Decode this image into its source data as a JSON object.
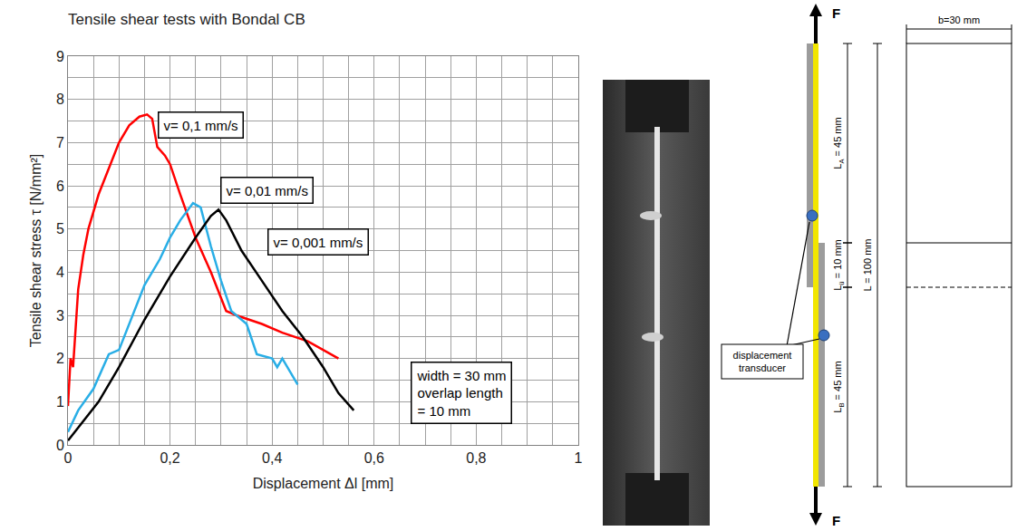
{
  "chart_data": {
    "type": "line",
    "title": "Tensile shear tests with Bondal CB",
    "x_label": "Displacement Δl [mm]",
    "y_label": "Tensile shear stress τ [N/mm²]",
    "xlim": [
      0,
      1
    ],
    "xticks": [
      0,
      {
        "value": 0.2,
        "label": "0,2"
      },
      {
        "value": 0.4,
        "label": "0,4"
      },
      {
        "value": 0.6,
        "label": "0,6"
      },
      {
        "value": 0.8,
        "label": "0,8"
      },
      1
    ],
    "ylim": [
      0,
      9
    ],
    "yticks": [
      0,
      1,
      2,
      3,
      4,
      5,
      6,
      7,
      8,
      9
    ],
    "grid": true,
    "series": [
      {
        "name": "v= 0,1 mm/s",
        "color": "#ff0000",
        "label_x": 0.26,
        "label_y": 7.4,
        "x": [
          0,
          0.005,
          0.01,
          0.015,
          0.02,
          0.03,
          0.04,
          0.06,
          0.08,
          0.1,
          0.12,
          0.14,
          0.155,
          0.165,
          0.175,
          0.19,
          0.2,
          0.22,
          0.25,
          0.28,
          0.31,
          0.33,
          0.38,
          0.42,
          0.47,
          0.5,
          0.53
        ],
        "values": [
          0.9,
          2.0,
          1.8,
          2.8,
          3.6,
          4.4,
          5.0,
          5.8,
          6.4,
          7.0,
          7.4,
          7.6,
          7.65,
          7.55,
          6.9,
          6.7,
          6.5,
          5.8,
          4.8,
          4.0,
          3.1,
          3.0,
          2.8,
          2.6,
          2.4,
          2.2,
          2.0
        ]
      },
      {
        "name": "v= 0,01 mm/s",
        "color": "#29aee6",
        "label_x": 0.39,
        "label_y": 5.9,
        "x": [
          0,
          0.02,
          0.05,
          0.08,
          0.1,
          0.12,
          0.15,
          0.18,
          0.2,
          0.22,
          0.245,
          0.26,
          0.28,
          0.3,
          0.32,
          0.35,
          0.37,
          0.4,
          0.41,
          0.42,
          0.45
        ],
        "values": [
          0.3,
          0.8,
          1.3,
          2.1,
          2.2,
          2.8,
          3.7,
          4.3,
          4.8,
          5.2,
          5.6,
          5.5,
          4.6,
          3.8,
          3.1,
          2.8,
          2.1,
          2.0,
          1.8,
          2.0,
          1.4
        ]
      },
      {
        "name": "v= 0,001 mm/s",
        "color": "#000000",
        "label_x": 0.49,
        "label_y": 4.7,
        "x": [
          0,
          0.02,
          0.04,
          0.06,
          0.1,
          0.15,
          0.2,
          0.25,
          0.28,
          0.295,
          0.31,
          0.34,
          0.38,
          0.42,
          0.46,
          0.5,
          0.53,
          0.56
        ],
        "values": [
          0.1,
          0.4,
          0.7,
          1.0,
          1.8,
          2.9,
          3.9,
          4.8,
          5.3,
          5.45,
          5.2,
          4.5,
          3.8,
          3.1,
          2.5,
          1.8,
          1.2,
          0.8
        ]
      }
    ],
    "annotations": [
      {
        "text": [
          "width = 30 mm",
          "overlap length",
          "= 10 mm"
        ],
        "x": 0.77,
        "y": 1.2
      }
    ]
  },
  "diagram": {
    "force": "F",
    "width": "b=30 mm",
    "total": {
      "main": "L = 100 mm"
    },
    "upper": {
      "main": "L",
      "sub": "A",
      "rest": " = 45 mm"
    },
    "overlap": {
      "main": "L",
      "sub": "ü",
      "rest": " = 10 mm"
    },
    "lower": {
      "main": "L",
      "sub": "B",
      "rest": " = 45 mm"
    },
    "transducer": "displacement transducer"
  }
}
